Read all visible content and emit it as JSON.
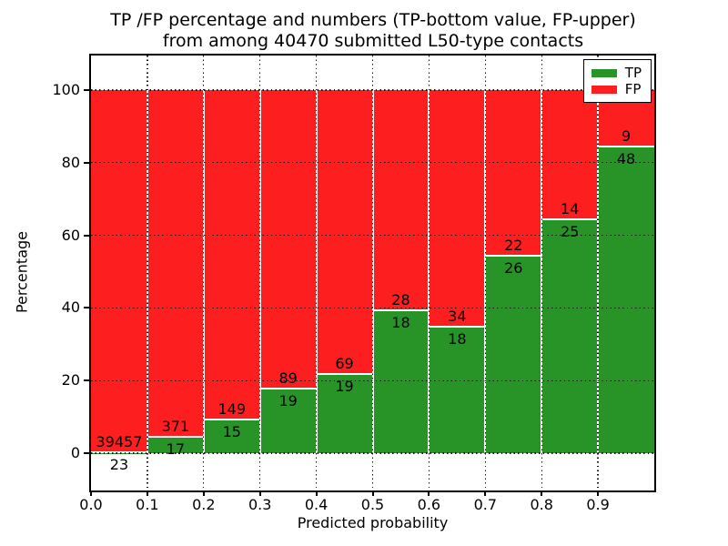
{
  "figure": {
    "title_line1": "TP /FP percentage and numbers (TP-bottom value, FP-upper)",
    "title_line2": "from among 40470 submitted L50-type contacts"
  },
  "chart_data": {
    "type": "bar",
    "stacked": true,
    "normalized": "each bin scaled to 100%",
    "title": "TP /FP percentage and numbers (TP-bottom value, FP-upper)\nfrom among 40470 submitted L50-type contacts",
    "xlabel": "Predicted probability",
    "ylabel": "Percentage",
    "total_contacts": 40470,
    "categories": [
      "0.0-0.1",
      "0.1-0.2",
      "0.2-0.3",
      "0.3-0.4",
      "0.4-0.5",
      "0.5-0.6",
      "0.6-0.7",
      "0.7-0.8",
      "0.8-0.9",
      "0.9-1.0"
    ],
    "bin_edges": [
      0.0,
      0.1,
      0.2,
      0.3,
      0.4,
      0.5,
      0.6,
      0.7,
      0.8,
      0.9,
      1.0
    ],
    "series": [
      {
        "name": "TP",
        "color": "#289428",
        "values": [
          23,
          17,
          15,
          19,
          19,
          18,
          18,
          26,
          25,
          48
        ]
      },
      {
        "name": "FP",
        "color": "#fd1f1f",
        "values": [
          39457,
          371,
          149,
          89,
          69,
          28,
          34,
          22,
          14,
          9
        ]
      }
    ],
    "tp_percent_of_bin": [
      0.06,
      4.38,
      9.15,
      17.59,
      21.59,
      39.13,
      34.62,
      54.17,
      64.1,
      84.21
    ],
    "x_tick_labels": [
      "0.0",
      "0.1",
      "0.2",
      "0.3",
      "0.4",
      "0.5",
      "0.6",
      "0.7",
      "0.8",
      "0.9"
    ],
    "y_ticks": [
      0,
      20,
      40,
      60,
      80,
      100
    ],
    "y_tick_labels": [
      "0",
      "20",
      "40",
      "60",
      "80",
      "100"
    ],
    "xlim": [
      0.0,
      1.0
    ],
    "ylim": [
      -10.3,
      109.8
    ],
    "grid": true,
    "grid_style": "black dotted, drawn above bars",
    "bar_edge_color": "#ffffff",
    "legend": {
      "position": "upper right",
      "entries": [
        "TP",
        "FP"
      ]
    }
  }
}
